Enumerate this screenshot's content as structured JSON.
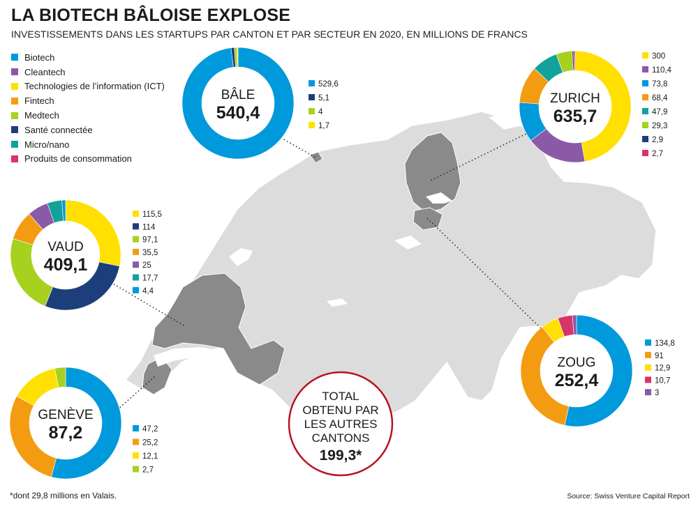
{
  "header": {
    "title": "LA BIOTECH BÂLOISE EXPLOSE",
    "subtitle": "INVESTISSEMENTS DANS LES STARTUPS PAR CANTON ET PAR SECTEUR EN 2020, EN MILLIONS DE FRANCS"
  },
  "legend": [
    {
      "label": "Biotech",
      "color": "#0099dc"
    },
    {
      "label": "Cleantech",
      "color": "#8a5aa6"
    },
    {
      "label": "Technologies de l’information (ICT)",
      "color": "#ffe000"
    },
    {
      "label": "Fintech",
      "color": "#f39c12"
    },
    {
      "label": "Medtech",
      "color": "#a6d11f"
    },
    {
      "label": "Santé connectée",
      "color": "#1c3f7c"
    },
    {
      "label": "Micro/nano",
      "color": "#13a19b"
    },
    {
      "label": "Produits de consommation",
      "color": "#d8336b"
    }
  ],
  "chart_data": [
    {
      "type": "pie",
      "canton": "BÂLE",
      "total": "540,4",
      "slices": [
        {
          "sector": "Biotech",
          "label": "529,6",
          "value": 529.6
        },
        {
          "sector": "Santé connectée",
          "label": "5,1",
          "value": 5.1
        },
        {
          "sector": "Medtech",
          "label": "4",
          "value": 4
        },
        {
          "sector": "Technologies de l’information (ICT)",
          "label": "1,7",
          "value": 1.7
        }
      ]
    },
    {
      "type": "pie",
      "canton": "ZURICH",
      "total": "635,7",
      "slices": [
        {
          "sector": "Technologies de l’information (ICT)",
          "label": "300",
          "value": 300
        },
        {
          "sector": "Cleantech",
          "label": "110,4",
          "value": 110.4
        },
        {
          "sector": "Biotech",
          "label": "73,8",
          "value": 73.8
        },
        {
          "sector": "Fintech",
          "label": "68,4",
          "value": 68.4
        },
        {
          "sector": "Micro/nano",
          "label": "47,9",
          "value": 47.9
        },
        {
          "sector": "Medtech",
          "label": "29,3",
          "value": 29.3
        },
        {
          "sector": "Santé connectée",
          "label": "2,9",
          "value": 2.9
        },
        {
          "sector": "Produits de consommation",
          "label": "2,7",
          "value": 2.7
        }
      ]
    },
    {
      "type": "pie",
      "canton": "VAUD",
      "total": "409,1",
      "slices": [
        {
          "sector": "Technologies de l’information (ICT)",
          "label": "115,5",
          "value": 115.5
        },
        {
          "sector": "Santé connectée",
          "label": "114",
          "value": 114
        },
        {
          "sector": "Medtech",
          "label": "97,1",
          "value": 97.1
        },
        {
          "sector": "Fintech",
          "label": "35,5",
          "value": 35.5
        },
        {
          "sector": "Cleantech",
          "label": "25",
          "value": 25
        },
        {
          "sector": "Micro/nano",
          "label": "17,7",
          "value": 17.7
        },
        {
          "sector": "Biotech",
          "label": "4,4",
          "value": 4.4
        }
      ]
    },
    {
      "type": "pie",
      "canton": "ZOUG",
      "total": "252,4",
      "slices": [
        {
          "sector": "Biotech",
          "label": "134,8",
          "value": 134.8
        },
        {
          "sector": "Fintech",
          "label": "91",
          "value": 91
        },
        {
          "sector": "Technologies de l’information (ICT)",
          "label": "12,9",
          "value": 12.9
        },
        {
          "sector": "Produits de consommation",
          "label": "10,7",
          "value": 10.7
        },
        {
          "sector": "Cleantech",
          "label": "3",
          "value": 3
        }
      ]
    },
    {
      "type": "pie",
      "canton": "GENÈVE",
      "total": "87,2",
      "slices": [
        {
          "sector": "Biotech",
          "label": "47,2",
          "value": 47.2
        },
        {
          "sector": "Fintech",
          "label": "25,2",
          "value": 25.2
        },
        {
          "sector": "Technologies de l’information (ICT)",
          "label": "12,1",
          "value": 12.1
        },
        {
          "sector": "Medtech",
          "label": "2,7",
          "value": 2.7
        }
      ]
    }
  ],
  "other_cantons": {
    "line1": "TOTAL",
    "line2": "OBTENU PAR",
    "line3": "LES AUTRES",
    "line4": "CANTONS",
    "value": "199,3*"
  },
  "footnote": "*dont 29,8 millions en Valais.",
  "source": "Source: Swiss Venture Capital Report"
}
